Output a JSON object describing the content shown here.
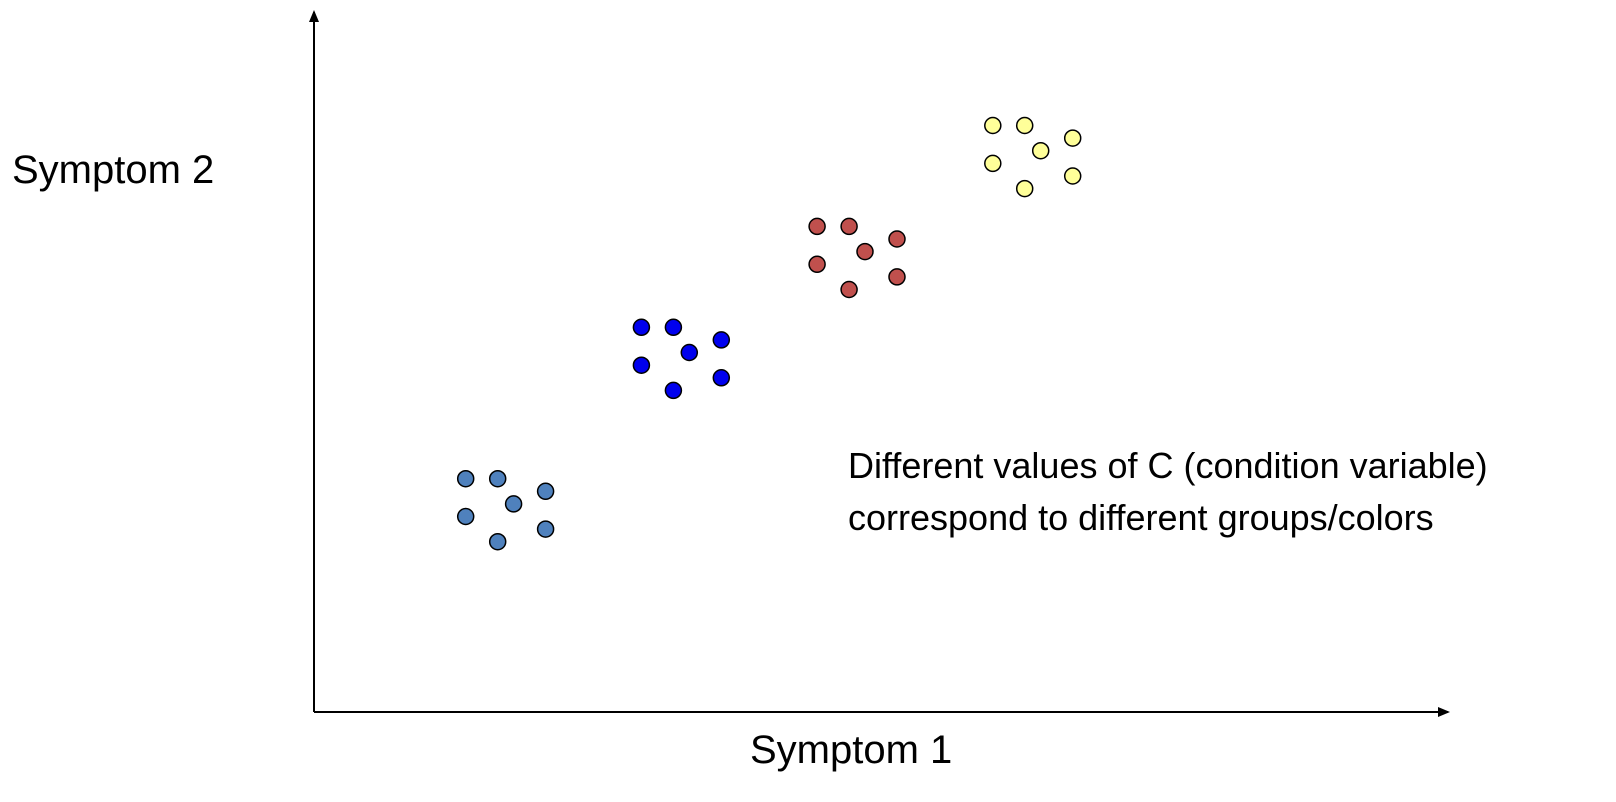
{
  "chart_data": {
    "type": "scatter",
    "xlabel": "Symptom 1",
    "ylabel": "Symptom 2",
    "annotation_lines": [
      "Different values of C (condition variable)",
      "correspond to different groups/colors"
    ],
    "grid": false,
    "series": [
      {
        "color": "#4f81bd",
        "points": [
          [
            0.95,
            1.85
          ],
          [
            1.15,
            1.85
          ],
          [
            1.45,
            1.75
          ],
          [
            1.25,
            1.65
          ],
          [
            0.95,
            1.55
          ],
          [
            1.45,
            1.45
          ],
          [
            1.15,
            1.35
          ]
        ]
      },
      {
        "color": "#0000ee",
        "points": [
          [
            2.05,
            3.05
          ],
          [
            2.25,
            3.05
          ],
          [
            2.55,
            2.95
          ],
          [
            2.35,
            2.85
          ],
          [
            2.05,
            2.75
          ],
          [
            2.55,
            2.65
          ],
          [
            2.25,
            2.55
          ]
        ]
      },
      {
        "color": "#c0504d",
        "points": [
          [
            3.15,
            3.85
          ],
          [
            3.35,
            3.85
          ],
          [
            3.65,
            3.75
          ],
          [
            3.45,
            3.65
          ],
          [
            3.15,
            3.55
          ],
          [
            3.65,
            3.45
          ],
          [
            3.35,
            3.35
          ]
        ]
      },
      {
        "color": "#ffff99",
        "points": [
          [
            4.25,
            4.65
          ],
          [
            4.45,
            4.65
          ],
          [
            4.75,
            4.55
          ],
          [
            4.55,
            4.45
          ],
          [
            4.25,
            4.35
          ],
          [
            4.75,
            4.25
          ],
          [
            4.45,
            4.15
          ]
        ]
      }
    ],
    "xlim": [
      0,
      7.1
    ],
    "ylim": [
      0,
      5.55
    ]
  }
}
